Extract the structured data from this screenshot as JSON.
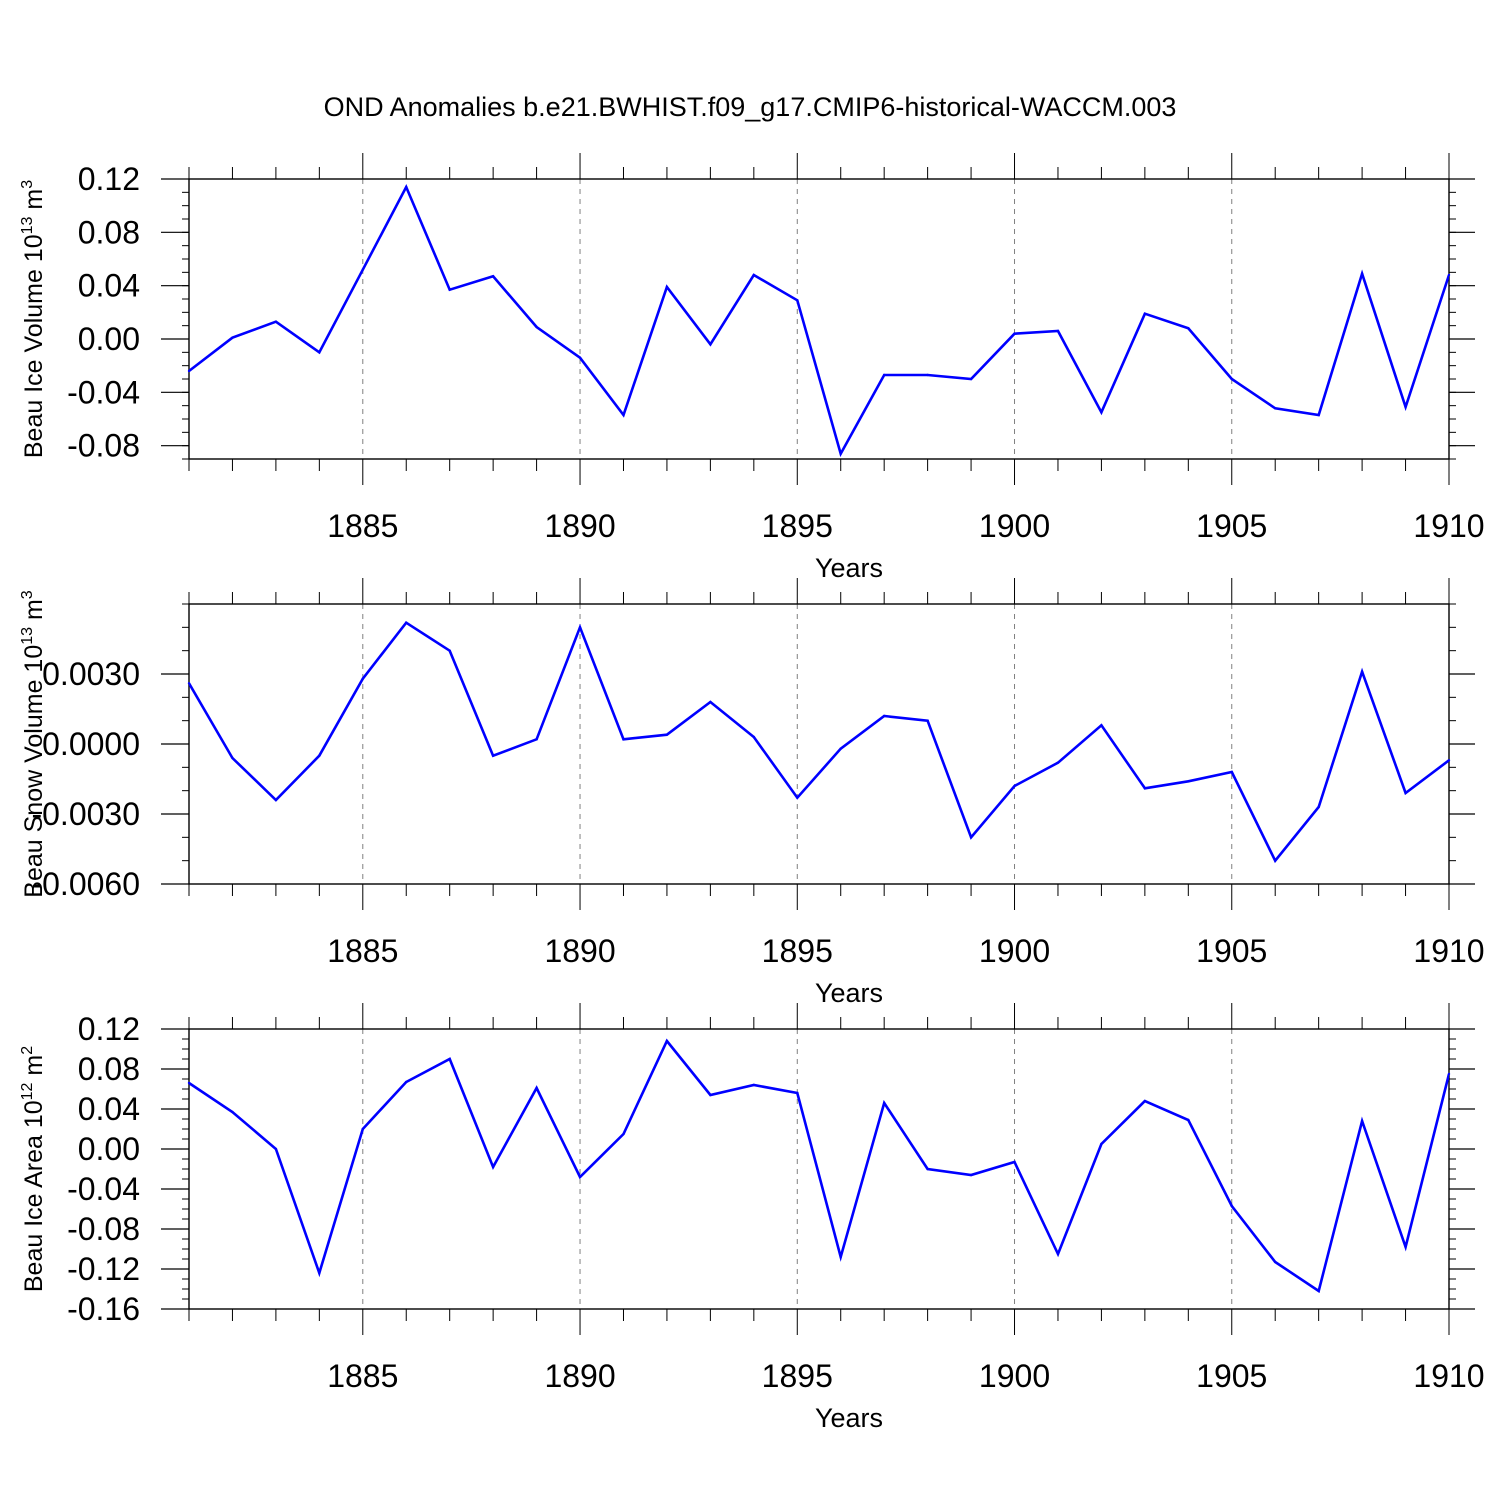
{
  "figure_title": "OND Anomalies b.e21.BWHIST.f09_g17.CMIP6-historical-WACCM.003",
  "colors": {
    "line": "#0000ff",
    "axis": "#000000",
    "grid": "#808080"
  },
  "chart_data": [
    {
      "type": "line",
      "title": "OND Anomalies b.e21.BWHIST.f09_g17.CMIP6-historical-WACCM.003",
      "xlabel": "Years",
      "ylabel": {
        "text": "Beau Ice Volume 10",
        "sup": "13",
        "unit": " m",
        "unit_sup": "3"
      },
      "xlim": [
        1881,
        1910
      ],
      "ylim": [
        -0.09,
        0.12
      ],
      "xticks": [
        1885,
        1890,
        1895,
        1900,
        1905,
        1910
      ],
      "xtick_labels": [
        "1885",
        "1890",
        "1895",
        "1900",
        "1905",
        "1910"
      ],
      "yticks": [
        0.12,
        0.08,
        0.04,
        0.0,
        -0.04,
        -0.08
      ],
      "ytick_labels": [
        "0.12",
        "0.08",
        "0.04",
        "0.00",
        "-0.04",
        "-0.08"
      ],
      "y_minor_step": 0.01,
      "vgrid": [
        1885,
        1890,
        1895,
        1900,
        1905
      ],
      "x": [
        1881,
        1882,
        1883,
        1884,
        1885,
        1886,
        1887,
        1888,
        1889,
        1890,
        1891,
        1892,
        1893,
        1894,
        1895,
        1896,
        1897,
        1898,
        1899,
        1900,
        1901,
        1902,
        1903,
        1904,
        1905,
        1906,
        1907,
        1908,
        1909,
        1910
      ],
      "values": [
        -0.024,
        0.001,
        0.013,
        -0.01,
        0.052,
        0.114,
        0.037,
        0.047,
        0.009,
        -0.014,
        -0.057,
        0.039,
        -0.004,
        0.048,
        0.029,
        -0.086,
        -0.027,
        -0.027,
        -0.03,
        0.004,
        0.006,
        -0.055,
        0.019,
        0.008,
        -0.03,
        -0.052,
        -0.057,
        0.049,
        -0.051,
        0.048
      ]
    },
    {
      "type": "line",
      "xlabel": "Years",
      "ylabel": {
        "text": "Beau Snow Volume 10",
        "sup": "13",
        "unit": " m",
        "unit_sup": "3"
      },
      "xlim": [
        1881,
        1910
      ],
      "ylim": [
        -0.006,
        0.006
      ],
      "xticks": [
        1885,
        1890,
        1895,
        1900,
        1905,
        1910
      ],
      "xtick_labels": [
        "1885",
        "1890",
        "1895",
        "1900",
        "1905",
        "1910"
      ],
      "yticks": [
        0.003,
        0.0,
        -0.003,
        -0.006
      ],
      "ytick_labels": [
        "0.0030",
        "0.0000",
        "-0.0030",
        "-0.0060"
      ],
      "y_minor_step": 0.001,
      "vgrid": [
        1885,
        1890,
        1895,
        1900,
        1905
      ],
      "x": [
        1881,
        1882,
        1883,
        1884,
        1885,
        1886,
        1887,
        1888,
        1889,
        1890,
        1891,
        1892,
        1893,
        1894,
        1895,
        1896,
        1897,
        1898,
        1899,
        1900,
        1901,
        1902,
        1903,
        1904,
        1905,
        1906,
        1907,
        1908,
        1909,
        1910
      ],
      "values": [
        0.0026,
        -0.0006,
        -0.0024,
        -0.0005,
        0.0028,
        0.0052,
        0.004,
        -0.0005,
        0.0002,
        0.005,
        0.0002,
        0.0004,
        0.0018,
        0.0003,
        -0.0023,
        -0.0002,
        0.0012,
        0.001,
        -0.004,
        -0.0018,
        -0.0008,
        0.0008,
        -0.0019,
        -0.0016,
        -0.0012,
        -0.005,
        -0.0027,
        0.0031,
        -0.0021,
        -0.0007
      ]
    },
    {
      "type": "line",
      "xlabel": "Years",
      "ylabel": {
        "text": "Beau Ice Area 10",
        "sup": "12",
        "unit": " m",
        "unit_sup": "2"
      },
      "xlim": [
        1881,
        1910
      ],
      "ylim": [
        -0.16,
        0.12
      ],
      "xticks": [
        1885,
        1890,
        1895,
        1900,
        1905,
        1910
      ],
      "xtick_labels": [
        "1885",
        "1890",
        "1895",
        "1900",
        "1905",
        "1910"
      ],
      "yticks": [
        0.12,
        0.08,
        0.04,
        0.0,
        -0.04,
        -0.08,
        -0.12,
        -0.16
      ],
      "ytick_labels": [
        "0.12",
        "0.08",
        "0.04",
        "0.00",
        "-0.04",
        "-0.08",
        "-0.12",
        "-0.16"
      ],
      "y_minor_step": 0.01,
      "vgrid": [
        1885,
        1890,
        1895,
        1900,
        1905
      ],
      "x": [
        1881,
        1882,
        1883,
        1884,
        1885,
        1886,
        1887,
        1888,
        1889,
        1890,
        1891,
        1892,
        1893,
        1894,
        1895,
        1896,
        1897,
        1898,
        1899,
        1900,
        1901,
        1902,
        1903,
        1904,
        1905,
        1906,
        1907,
        1908,
        1909,
        1910
      ],
      "values": [
        0.066,
        0.037,
        0.0,
        -0.124,
        0.02,
        0.067,
        0.09,
        -0.018,
        0.061,
        -0.028,
        0.015,
        0.108,
        0.054,
        0.064,
        0.056,
        -0.108,
        0.046,
        -0.02,
        -0.026,
        -0.013,
        -0.105,
        0.005,
        0.048,
        0.029,
        -0.057,
        -0.113,
        -0.142,
        0.028,
        -0.098,
        0.075
      ]
    }
  ]
}
